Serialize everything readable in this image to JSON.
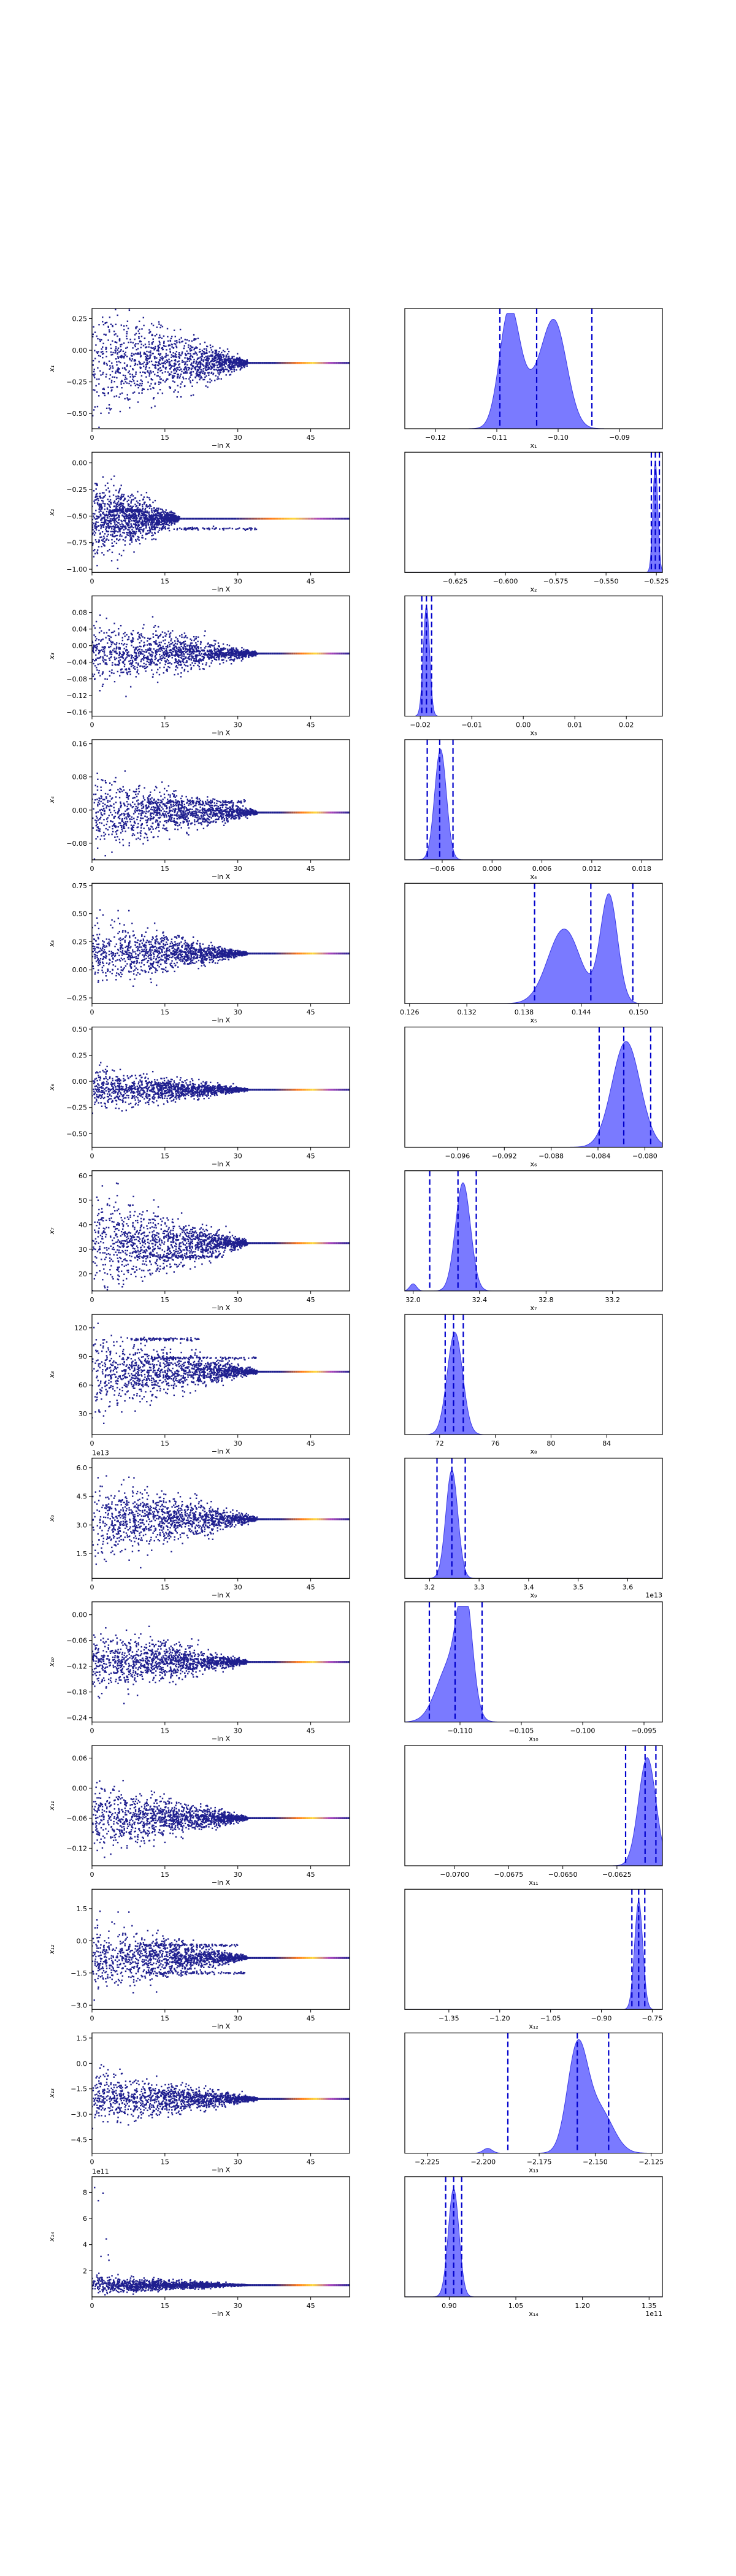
{
  "figure": {
    "colors": {
      "scatter": "#1f1f8f",
      "density_fill": "#6b6bff",
      "density_edge": "#3a3ae6",
      "credible_lines": "#0000cc",
      "hot_start": "#ff7a1a",
      "hot_mid": "#ffd93b",
      "hot_end": "#ab47bc"
    },
    "trace_xlabel": "−ln X"
  },
  "chart_data": [
    {
      "type": "scatter",
      "param": "x1",
      "ylabel": "x₁",
      "xlabel": "−ln X",
      "xlim": [
        0,
        53
      ],
      "xticks": [
        0,
        15,
        30,
        45
      ],
      "xtick_labels": [
        "0",
        "15",
        "30",
        "45"
      ],
      "ylim": [
        -0.62,
        0.33
      ],
      "yticks": [
        0.25,
        0.0,
        -0.25,
        -0.5
      ],
      "ytick_labels": [
        "0.25",
        "0.00",
        "−0.25",
        "−0.50"
      ],
      "converged_value": -0.1,
      "initial_spread": 0.42,
      "spread_end": 32,
      "extra_bands": []
    },
    {
      "type": "area",
      "param": "x1",
      "xlabel": "x₁",
      "xlim": [
        -0.125,
        -0.083
      ],
      "xticks": [
        -0.12,
        -0.11,
        -0.1,
        -0.09
      ],
      "xtick_labels": [
        "−0.12",
        "−0.11",
        "−0.10",
        "−0.09"
      ],
      "peaks": [
        {
          "mu": -0.108,
          "sigma": 0.0016,
          "amp": 0.9
        },
        {
          "mu": -0.1005,
          "sigma": 0.002,
          "amp": 0.82
        },
        {
          "mu": -0.1045,
          "sigma": 0.0025,
          "amp": 0.3
        }
      ],
      "credible_lines": [
        -0.1095,
        -0.1035,
        -0.0945
      ]
    },
    {
      "type": "scatter",
      "param": "x2",
      "ylabel": "x₂",
      "xlabel": "−ln X",
      "xlim": [
        0,
        53
      ],
      "xticks": [
        0,
        15,
        30,
        45
      ],
      "xtick_labels": [
        "0",
        "15",
        "30",
        "45"
      ],
      "ylim": [
        -1.03,
        0.1
      ],
      "yticks": [
        0.0,
        -0.25,
        -0.5,
        -0.75,
        -1.0
      ],
      "ytick_labels": [
        "0.00",
        "−0.25",
        "−0.50",
        "−0.75",
        "−1.00"
      ],
      "converged_value": -0.525,
      "initial_spread": 0.35,
      "spread_end": 18,
      "extra_bands": [
        {
          "value": -0.62,
          "end": 34
        },
        {
          "value": -0.45,
          "end": 10
        }
      ]
    },
    {
      "type": "area",
      "param": "x2",
      "xlabel": "x₂",
      "xlim": [
        -0.65,
        -0.522
      ],
      "xticks": [
        -0.625,
        -0.6,
        -0.575,
        -0.55,
        -0.525
      ],
      "xtick_labels": [
        "−0.625",
        "−0.600",
        "−0.575",
        "−0.550",
        "−0.525"
      ],
      "peaks": [
        {
          "mu": -0.5255,
          "sigma": 0.0012,
          "amp": 0.92
        }
      ],
      "credible_lines": [
        -0.5275,
        -0.5255,
        -0.5235
      ]
    },
    {
      "type": "scatter",
      "param": "x3",
      "ylabel": "x₃",
      "xlabel": "−ln X",
      "xlim": [
        0,
        53
      ],
      "xticks": [
        0,
        15,
        30,
        45
      ],
      "xtick_labels": [
        "0",
        "15",
        "30",
        "45"
      ],
      "ylim": [
        -0.17,
        0.12
      ],
      "yticks": [
        0.08,
        0.04,
        0.0,
        -0.04,
        -0.08,
        -0.12,
        -0.16
      ],
      "ytick_labels": [
        "0.08",
        "0.04",
        "0.00",
        "−0.04",
        "−0.08",
        "−0.12",
        "−0.16"
      ],
      "converged_value": -0.019,
      "initial_spread": 0.075,
      "spread_end": 34,
      "extra_bands": []
    },
    {
      "type": "area",
      "param": "x3",
      "xlabel": "x₃",
      "xlim": [
        -0.023,
        0.027
      ],
      "xticks": [
        -0.02,
        -0.01,
        0.0,
        0.01,
        0.02
      ],
      "xtick_labels": [
        "−0.02",
        "−0.01",
        "0.00",
        "0.01",
        "0.02"
      ],
      "peaks": [
        {
          "mu": -0.0188,
          "sigma": 0.0006,
          "amp": 0.92
        }
      ],
      "credible_lines": [
        -0.0197,
        -0.0188,
        -0.0178
      ]
    },
    {
      "type": "scatter",
      "param": "x4",
      "ylabel": "x₄",
      "xlabel": "−ln X",
      "xlim": [
        0,
        53
      ],
      "xticks": [
        0,
        15,
        30,
        45
      ],
      "xtick_labels": [
        "0",
        "15",
        "30",
        "45"
      ],
      "ylim": [
        -0.12,
        0.17
      ],
      "yticks": [
        0.16,
        0.08,
        0.0,
        -0.08
      ],
      "ytick_labels": [
        "0.16",
        "0.08",
        "0.00",
        "−0.08"
      ],
      "converged_value": -0.006,
      "initial_spread": 0.08,
      "spread_end": 34,
      "extra_bands": [
        {
          "value": 0.02,
          "end": 32
        }
      ]
    },
    {
      "type": "area",
      "param": "x4",
      "xlabel": "x₄",
      "xlim": [
        -0.0105,
        0.0205
      ],
      "xticks": [
        -0.006,
        0.0,
        0.006,
        0.012,
        0.018
      ],
      "xtick_labels": [
        "−0.006",
        "0.000",
        "0.006",
        "0.012",
        "0.018"
      ],
      "peaks": [
        {
          "mu": -0.0062,
          "sigma": 0.0007,
          "amp": 0.92
        }
      ],
      "credible_lines": [
        -0.0078,
        -0.0063,
        -0.0047
      ]
    },
    {
      "type": "scatter",
      "param": "x5",
      "ylabel": "x₅",
      "xlabel": "−ln X",
      "xlim": [
        0,
        53
      ],
      "xticks": [
        0,
        15,
        30,
        45
      ],
      "xtick_labels": [
        "0",
        "15",
        "30",
        "45"
      ],
      "ylim": [
        -0.3,
        0.77
      ],
      "yticks": [
        0.75,
        0.5,
        0.25,
        0.0,
        -0.25
      ],
      "ytick_labels": [
        "0.75",
        "0.50",
        "0.25",
        "0.00",
        "−0.25"
      ],
      "converged_value": 0.145,
      "initial_spread": 0.25,
      "spread_end": 32,
      "extra_bands": []
    },
    {
      "type": "area",
      "param": "x5",
      "xlabel": "x₅",
      "xlim": [
        0.1255,
        0.1525
      ],
      "xticks": [
        0.126,
        0.132,
        0.138,
        0.144,
        0.15
      ],
      "xtick_labels": [
        "0.126",
        "0.132",
        "0.138",
        "0.144",
        "0.150"
      ],
      "peaks": [
        {
          "mu": 0.1422,
          "sigma": 0.0017,
          "amp": 0.62
        },
        {
          "mu": 0.1469,
          "sigma": 0.0009,
          "amp": 0.9
        }
      ],
      "credible_lines": [
        0.1391,
        0.145,
        0.1494
      ]
    },
    {
      "type": "scatter",
      "param": "x6",
      "ylabel": "x₆",
      "xlabel": "−ln X",
      "xlim": [
        0,
        53
      ],
      "xticks": [
        0,
        15,
        30,
        45
      ],
      "xtick_labels": [
        "0",
        "15",
        "30",
        "45"
      ],
      "ylim": [
        -0.63,
        0.52
      ],
      "yticks": [
        0.5,
        0.25,
        0.0,
        -0.25,
        -0.5
      ],
      "ytick_labels": [
        "0.50",
        "0.25",
        "0.00",
        "−0.25",
        "−0.50"
      ],
      "converged_value": -0.08,
      "initial_spread": 0.18,
      "spread_end": 32,
      "extra_bands": []
    },
    {
      "type": "area",
      "param": "x6",
      "xlabel": "x₆",
      "xlim": [
        -0.1005,
        -0.0785
      ],
      "xticks": [
        -0.096,
        -0.092,
        -0.088,
        -0.084,
        -0.08
      ],
      "xtick_labels": [
        "−0.096",
        "−0.092",
        "−0.088",
        "−0.084",
        "−0.080"
      ],
      "peaks": [
        {
          "mu": -0.0816,
          "sigma": 0.0012,
          "amp": 0.88
        }
      ],
      "credible_lines": [
        -0.0839,
        -0.0818,
        -0.0795
      ]
    },
    {
      "type": "scatter",
      "param": "x7",
      "ylabel": "x₇",
      "xlabel": "−ln X",
      "xlim": [
        0,
        53
      ],
      "xticks": [
        0,
        15,
        30,
        45
      ],
      "xtick_labels": [
        "0",
        "15",
        "30",
        "45"
      ],
      "ylim": [
        13,
        62
      ],
      "yticks": [
        60,
        50,
        40,
        30,
        20
      ],
      "ytick_labels": [
        "60",
        "50",
        "40",
        "30",
        "20"
      ],
      "converged_value": 32.5,
      "initial_spread": 18,
      "spread_end": 32,
      "extra_bands": [
        {
          "value": 27,
          "end": 27
        }
      ]
    },
    {
      "type": "area",
      "param": "x7",
      "xlabel": "x₇",
      "xlim": [
        31.95,
        33.5
      ],
      "xticks": [
        32.0,
        32.4,
        32.8,
        33.2
      ],
      "xtick_labels": [
        "32.0",
        "32.4",
        "32.8",
        "33.2"
      ],
      "peaks": [
        {
          "mu": 32.3,
          "sigma": 0.045,
          "amp": 0.9
        },
        {
          "mu": 32.0,
          "sigma": 0.02,
          "amp": 0.06
        }
      ],
      "credible_lines": [
        32.1,
        32.27,
        32.38
      ]
    },
    {
      "type": "scatter",
      "param": "x8",
      "ylabel": "x₈",
      "xlabel": "−ln X",
      "xlim": [
        0,
        53
      ],
      "xticks": [
        0,
        15,
        30,
        45
      ],
      "xtick_labels": [
        "0",
        "15",
        "30",
        "45"
      ],
      "ylim": [
        8,
        134
      ],
      "yticks": [
        120,
        90,
        60,
        30
      ],
      "ytick_labels": [
        "120",
        "90",
        "60",
        "30"
      ],
      "converged_value": 74,
      "initial_spread": 35,
      "spread_end": 34,
      "extra_bands": [
        {
          "value": 88,
          "end": 34
        },
        {
          "value": 108,
          "end": 22
        }
      ]
    },
    {
      "type": "area",
      "param": "x8",
      "xlabel": "x₈",
      "xlim": [
        69.5,
        88
      ],
      "xticks": [
        72,
        76,
        80,
        84
      ],
      "xtick_labels": [
        "72",
        "76",
        "80",
        "84"
      ],
      "peaks": [
        {
          "mu": 73.1,
          "sigma": 0.55,
          "amp": 0.85
        }
      ],
      "credible_lines": [
        72.4,
        73.0,
        73.7
      ]
    },
    {
      "type": "scatter",
      "param": "x9",
      "ylabel": "x₉",
      "xlabel": "−ln X",
      "xlim": [
        0,
        53
      ],
      "xticks": [
        0,
        15,
        30,
        45
      ],
      "xtick_labels": [
        "0",
        "15",
        "30",
        "45"
      ],
      "ylim": [
        0.2,
        6.5
      ],
      "yticks": [
        6.0,
        4.5,
        3.0,
        1.5
      ],
      "ytick_labels": [
        "6.0",
        "4.5",
        "3.0",
        "1.5"
      ],
      "offset_label": "1e13",
      "converged_value": 3.3,
      "initial_spread": 1.9,
      "spread_end": 34,
      "extra_bands": []
    },
    {
      "type": "area",
      "param": "x9",
      "xlabel": "x₉",
      "offset_label": "1e13",
      "xlim": [
        3.15,
        3.67
      ],
      "xticks": [
        3.2,
        3.3,
        3.4,
        3.5,
        3.6
      ],
      "xtick_labels": [
        "3.2",
        "3.3",
        "3.4",
        "3.5",
        "3.6"
      ],
      "peaks": [
        {
          "mu": 3.245,
          "sigma": 0.012,
          "amp": 0.9
        }
      ],
      "credible_lines": [
        3.215,
        3.245,
        3.272
      ]
    },
    {
      "type": "scatter",
      "param": "x10",
      "ylabel": "x₁₀",
      "xlabel": "−ln X",
      "xlim": [
        0,
        53
      ],
      "xticks": [
        0,
        15,
        30,
        45
      ],
      "xtick_labels": [
        "0",
        "15",
        "30",
        "45"
      ],
      "ylim": [
        -0.25,
        0.03
      ],
      "yticks": [
        0.0,
        -0.06,
        -0.12,
        -0.18,
        -0.24
      ],
      "ytick_labels": [
        "0.00",
        "−0.06",
        "−0.12",
        "−0.18",
        "−0.24"
      ],
      "converged_value": -0.11,
      "initial_spread": 0.07,
      "spread_end": 32,
      "extra_bands": []
    },
    {
      "type": "area",
      "param": "x10",
      "xlabel": "x₁₀",
      "xlim": [
        -0.1145,
        -0.0935
      ],
      "xticks": [
        -0.11,
        -0.105,
        -0.1,
        -0.095
      ],
      "xtick_labels": [
        "−0.110",
        "−0.105",
        "−0.100",
        "−0.095"
      ],
      "peaks": [
        {
          "mu": -0.1096,
          "sigma": 0.0006,
          "amp": 0.9
        },
        {
          "mu": -0.1108,
          "sigma": 0.0011,
          "amp": 0.48
        }
      ],
      "credible_lines": [
        -0.1125,
        -0.1104,
        -0.1082
      ]
    },
    {
      "type": "scatter",
      "param": "x11",
      "ylabel": "x₁₁",
      "xlabel": "−ln X",
      "xlim": [
        0,
        53
      ],
      "xticks": [
        0,
        15,
        30,
        45
      ],
      "xtick_labels": [
        "0",
        "15",
        "30",
        "45"
      ],
      "ylim": [
        -0.155,
        0.085
      ],
      "yticks": [
        0.06,
        0.0,
        -0.06,
        -0.12
      ],
      "ytick_labels": [
        "0.06",
        "0.00",
        "−0.06",
        "−0.12"
      ],
      "converged_value": -0.06,
      "initial_spread": 0.06,
      "spread_end": 32,
      "extra_bands": []
    },
    {
      "type": "area",
      "param": "x11",
      "xlabel": "x₁₁",
      "xlim": [
        -0.0723,
        -0.0604
      ],
      "xticks": [
        -0.07,
        -0.0675,
        -0.065,
        -0.0625
      ],
      "xtick_labels": [
        "−0.0700",
        "−0.0675",
        "−0.0650",
        "−0.0625"
      ],
      "peaks": [
        {
          "mu": -0.0611,
          "sigma": 0.0004,
          "amp": 0.9
        }
      ],
      "credible_lines": [
        -0.0621,
        -0.0612,
        -0.0607
      ]
    },
    {
      "type": "scatter",
      "param": "x12",
      "ylabel": "x₁₂",
      "xlabel": "−ln X",
      "xlim": [
        0,
        53
      ],
      "xticks": [
        0,
        15,
        30,
        45
      ],
      "xtick_labels": [
        "0",
        "15",
        "30",
        "45"
      ],
      "ylim": [
        -3.2,
        2.4
      ],
      "yticks": [
        1.5,
        0.0,
        -1.5,
        -3.0
      ],
      "ytick_labels": [
        "1.5",
        "0.0",
        "−1.5",
        "−3.0"
      ],
      "converged_value": -0.8,
      "initial_spread": 1.4,
      "spread_end": 32,
      "extra_bands": [
        {
          "value": -1.5,
          "end": 32
        },
        {
          "value": -0.2,
          "end": 30
        }
      ]
    },
    {
      "type": "area",
      "param": "x12",
      "xlabel": "x₁₂",
      "xlim": [
        -1.48,
        -0.72
      ],
      "xticks": [
        -1.35,
        -1.2,
        -1.05,
        -0.9,
        -0.75
      ],
      "xtick_labels": [
        "−1.35",
        "−1.20",
        "−1.05",
        "−0.90",
        "−0.75"
      ],
      "peaks": [
        {
          "mu": -0.79,
          "sigma": 0.012,
          "amp": 0.9
        }
      ],
      "credible_lines": [
        -0.81,
        -0.79,
        -0.772
      ]
    },
    {
      "type": "scatter",
      "param": "x13",
      "ylabel": "x₁₃",
      "xlabel": "−ln X",
      "xlim": [
        0,
        53
      ],
      "xticks": [
        0,
        15,
        30,
        45
      ],
      "xtick_labels": [
        "0",
        "15",
        "30",
        "45"
      ],
      "ylim": [
        -5.3,
        1.8
      ],
      "yticks": [
        1.5,
        0.0,
        -1.5,
        -3.0,
        -4.5
      ],
      "ytick_labels": [
        "1.5",
        "0.0",
        "−1.5",
        "−3.0",
        "−4.5"
      ],
      "converged_value": -2.1,
      "initial_spread": 1.4,
      "spread_end": 34,
      "extra_bands": []
    },
    {
      "type": "area",
      "param": "x13",
      "xlabel": "x₁₃",
      "xlim": [
        -2.235,
        -2.12
      ],
      "xticks": [
        -2.225,
        -2.2,
        -2.175,
        -2.15,
        -2.125
      ],
      "xtick_labels": [
        "−2.225",
        "−2.200",
        "−2.175",
        "−2.150",
        "−2.125"
      ],
      "peaks": [
        {
          "mu": -2.158,
          "sigma": 0.0045,
          "amp": 0.85
        },
        {
          "mu": -2.148,
          "sigma": 0.006,
          "amp": 0.35
        },
        {
          "mu": -2.198,
          "sigma": 0.002,
          "amp": 0.04
        }
      ],
      "credible_lines": [
        -2.189,
        -2.158,
        -2.144
      ]
    },
    {
      "type": "scatter",
      "param": "x14",
      "ylabel": "x₁₄",
      "xlabel": "−ln X",
      "xlim": [
        0,
        53
      ],
      "xticks": [
        0,
        15,
        30,
        45
      ],
      "xtick_labels": [
        "0",
        "15",
        "30",
        "45"
      ],
      "ylim": [
        0.0,
        9.2
      ],
      "yticks": [
        8,
        6,
        4,
        2
      ],
      "ytick_labels": [
        "8",
        "6",
        "4",
        "2"
      ],
      "offset_label": "1e11",
      "converged_value": 0.9,
      "initial_spread": 0.6,
      "spread_end": 32,
      "extra_bands": [],
      "outlier_cloud": true
    },
    {
      "type": "area",
      "param": "x14",
      "xlabel": "x₁₄",
      "offset_label": "1e11",
      "xlim": [
        0.8,
        1.38
      ],
      "xticks": [
        0.9,
        1.05,
        1.2,
        1.35
      ],
      "xtick_labels": [
        "0.90",
        "1.05",
        "1.20",
        "1.35"
      ],
      "peaks": [
        {
          "mu": 0.91,
          "sigma": 0.012,
          "amp": 0.9
        }
      ],
      "credible_lines": [
        0.892,
        0.91,
        0.928
      ]
    }
  ]
}
